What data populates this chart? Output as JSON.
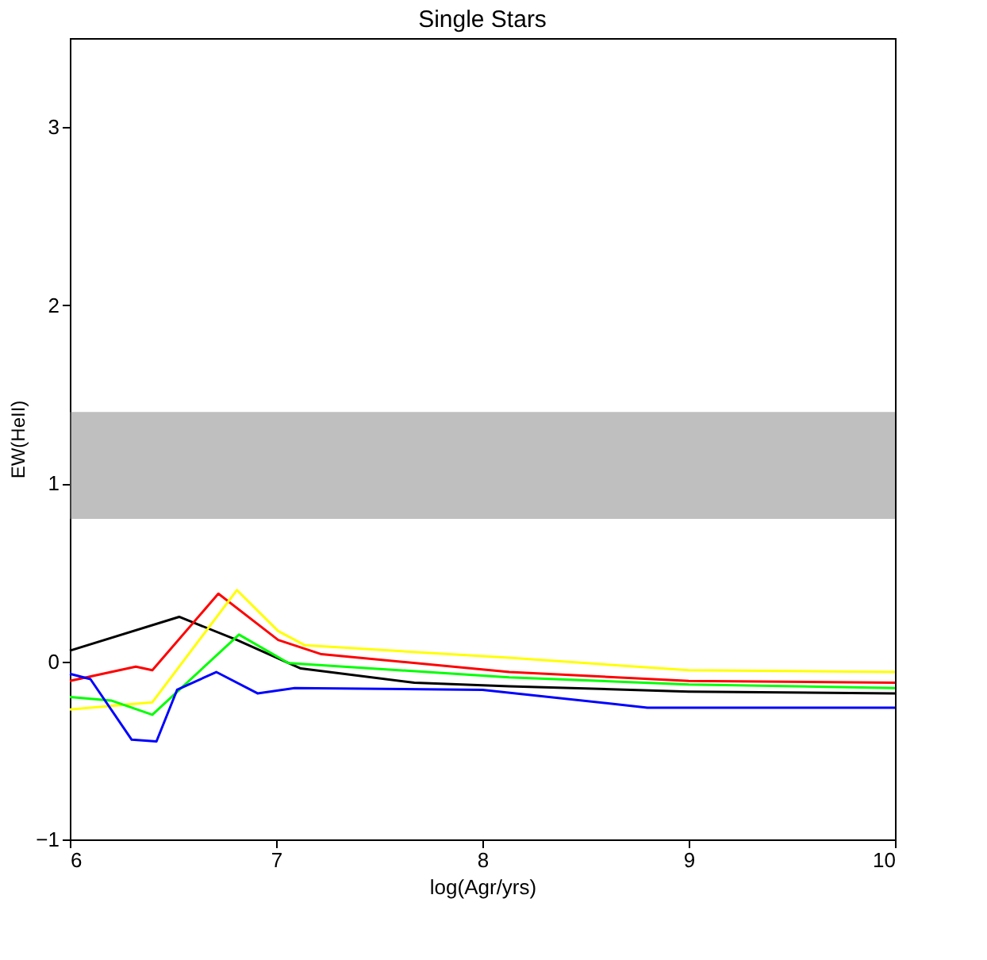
{
  "chart_data": {
    "type": "line",
    "title": "Single Stars",
    "xlabel": "log(Agr/yrs)",
    "ylabel": "EW(HeII)",
    "xlim": [
      6,
      10
    ],
    "xticks": [
      6,
      7,
      8,
      9,
      10
    ],
    "ylim": [
      -1,
      3.5
    ],
    "yticks": [
      -1,
      0,
      1,
      2,
      3
    ],
    "grid": false,
    "bands": [
      {
        "axis": "y",
        "from": 0.8,
        "to": 1.4,
        "color": "#808080"
      }
    ],
    "series": [
      {
        "color": "#000000",
        "x": [
          6.0,
          6.53,
          6.81,
          7.12,
          7.67,
          8.13,
          9.0,
          10.0
        ],
        "values": [
          0.06,
          0.25,
          0.12,
          -0.04,
          -0.12,
          -0.14,
          -0.17,
          -0.18
        ]
      },
      {
        "color": "#ff0000",
        "x": [
          6.0,
          6.32,
          6.4,
          6.72,
          7.01,
          7.22,
          8.13,
          9.0,
          10.0
        ],
        "values": [
          -0.11,
          -0.03,
          -0.05,
          0.38,
          0.12,
          0.04,
          -0.06,
          -0.11,
          -0.12
        ]
      },
      {
        "color": "#ffff00",
        "x": [
          6.0,
          6.4,
          6.81,
          7.01,
          7.14,
          8.13,
          9.0,
          10.0
        ],
        "values": [
          -0.27,
          -0.23,
          0.4,
          0.17,
          0.09,
          0.02,
          -0.05,
          -0.06
        ]
      },
      {
        "color": "#00ff00",
        "x": [
          6.0,
          6.2,
          6.4,
          6.82,
          7.06,
          8.13,
          9.0,
          10.0
        ],
        "values": [
          -0.2,
          -0.22,
          -0.3,
          0.15,
          -0.01,
          -0.09,
          -0.13,
          -0.15
        ]
      },
      {
        "color": "#0000ff",
        "x": [
          6.0,
          6.1,
          6.3,
          6.42,
          6.52,
          6.71,
          6.91,
          7.09,
          8.0,
          8.8,
          10.0
        ],
        "values": [
          -0.07,
          -0.1,
          -0.44,
          -0.45,
          -0.16,
          -0.06,
          -0.18,
          -0.15,
          -0.16,
          -0.26,
          -0.26
        ]
      }
    ]
  }
}
